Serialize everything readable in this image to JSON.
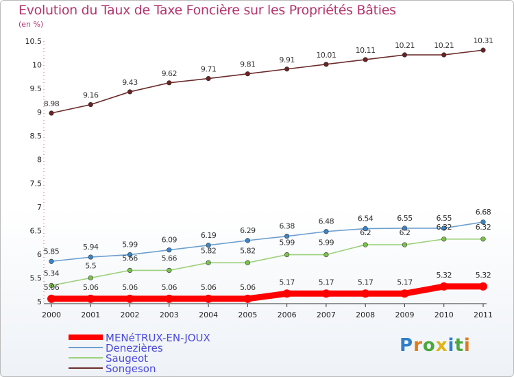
{
  "title": "Evolution du Taux de Taxe Foncière sur les Propriétés Bâties",
  "unit_label": "(en %)",
  "logo": {
    "letters": [
      "P",
      "r",
      "o",
      "x",
      "i",
      "t",
      "i"
    ],
    "colors": [
      "#2f7fc8",
      "#e07a1a",
      "#4aa83c",
      "#e0b316",
      "#2f7fc8",
      "#4aa83c",
      "#e07a1a"
    ]
  },
  "chart_data": {
    "type": "line",
    "x": [
      "2000",
      "2001",
      "2002",
      "2003",
      "2004",
      "2005",
      "2006",
      "2007",
      "2008",
      "2009",
      "2010",
      "2011"
    ],
    "ylim": [
      5,
      10.5
    ],
    "yticks": [
      "5",
      "5.5",
      "6",
      "6.5",
      "7",
      "7.5",
      "8",
      "8.5",
      "9",
      "9.5",
      "10",
      "10.5"
    ],
    "grid": false,
    "legend_position": "bottom-left",
    "series": [
      {
        "name": "MENéTRUX-EN-JOUX",
        "color": "#ff0000",
        "legend_color": "#4a4adb",
        "values": [
          5.06,
          5.06,
          5.06,
          5.06,
          5.06,
          5.06,
          5.17,
          5.17,
          5.17,
          5.17,
          5.32,
          5.32
        ],
        "labels": [
          "5.06",
          "5.06",
          "5.06",
          "5.06",
          "5.06",
          "5.06",
          "5.17",
          "5.17",
          "5.17",
          "5.17",
          "5.32",
          "5.32"
        ]
      },
      {
        "name": "Denezières",
        "color": "#6d9fcf",
        "marker": "#3b86c8",
        "legend_color": "#4a4adb",
        "values": [
          5.85,
          5.94,
          5.99,
          6.09,
          6.19,
          6.29,
          6.38,
          6.48,
          6.54,
          6.55,
          6.55,
          6.68
        ],
        "labels": [
          "5.85",
          "5.94",
          "5.99",
          "6.09",
          "6.19",
          "6.29",
          "6.38",
          "6.48",
          "6.54",
          "6.55",
          "6.55",
          "6.68"
        ]
      },
      {
        "name": "Saugeot",
        "color": "#9bd07a",
        "marker": "#7bc24d",
        "legend_color": "#4a4adb",
        "values": [
          5.34,
          5.5,
          5.66,
          5.66,
          5.82,
          5.82,
          5.99,
          5.99,
          6.2,
          6.2,
          6.32,
          6.32
        ],
        "labels": [
          "5.34",
          "5.5",
          "5.66",
          "5.66",
          "5.82",
          "5.82",
          "5.99",
          "5.99",
          "6.2",
          "6.2",
          "6.32",
          "6.32"
        ]
      },
      {
        "name": "Songeson",
        "color": "#6b2b2b",
        "marker": "#6b2222",
        "legend_color": "#4a4adb",
        "values": [
          8.98,
          9.16,
          9.43,
          9.62,
          9.71,
          9.81,
          9.91,
          10.01,
          10.11,
          10.21,
          10.21,
          10.31
        ],
        "labels": [
          "8.98",
          "9.16",
          "9.43",
          "9.62",
          "9.71",
          "9.81",
          "9.91",
          "10.01",
          "10.11",
          "10.21",
          "10.21",
          "10.31"
        ]
      }
    ]
  }
}
